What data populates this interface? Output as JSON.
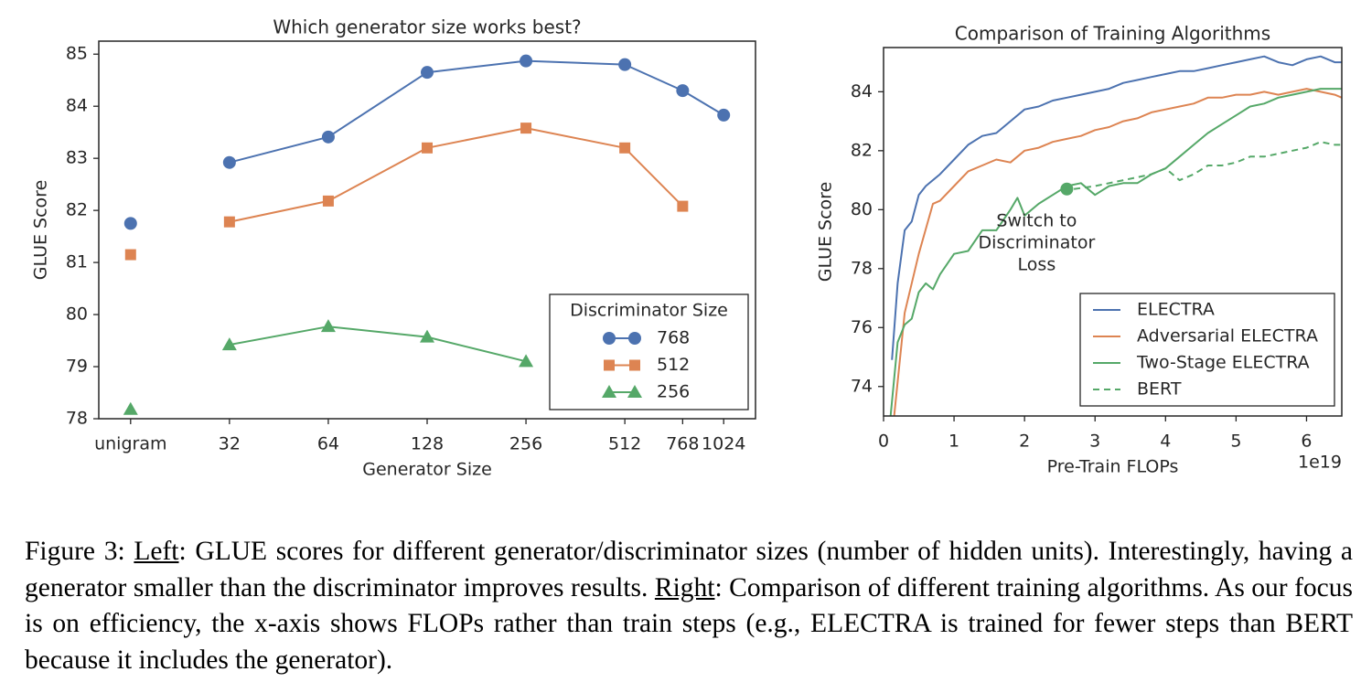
{
  "chart_data": [
    {
      "type": "line",
      "title": "Which generator size works best?",
      "xlabel": "Generator Size",
      "ylabel": "GLUE Score",
      "xscale": "log",
      "xlim": [
        12.8,
        1280
      ],
      "ylim": [
        78,
        85.25
      ],
      "x": [
        16,
        32,
        64,
        128,
        256,
        512,
        768,
        1024
      ],
      "xticks": [
        {
          "value": 16,
          "label": "unigram"
        },
        32,
        64,
        128,
        256,
        512,
        768,
        1024
      ],
      "yticks": [
        78,
        79,
        80,
        81,
        82,
        83,
        84,
        85
      ],
      "unjoined_x": [
        16
      ],
      "legend_title": "Discriminator Size",
      "legend": "lower right",
      "series": [
        {
          "name": "768",
          "color": "#4c72b0",
          "marker": "circle",
          "values": [
            81.75,
            82.92,
            83.41,
            84.65,
            84.87,
            84.8,
            84.3,
            83.83
          ]
        },
        {
          "name": "512",
          "color": "#dd8452",
          "marker": "square",
          "values": [
            81.15,
            81.78,
            82.18,
            83.2,
            83.58,
            83.2,
            82.08,
            null
          ]
        },
        {
          "name": "256",
          "color": "#55a868",
          "marker": "triangle",
          "values": [
            78.18,
            79.42,
            79.77,
            79.57,
            79.1,
            null,
            null,
            null
          ]
        }
      ]
    },
    {
      "type": "line",
      "title": "Comparison of Training Algorithms",
      "xlabel": "Pre-Train FLOPs",
      "ylabel": "GLUE Score",
      "x_offset_label": "1e19",
      "xlim": [
        0,
        6.5
      ],
      "ylim": [
        73,
        85.5
      ],
      "xticks": [
        0,
        1,
        2,
        3,
        4,
        5,
        6
      ],
      "yticks": [
        74,
        76,
        78,
        80,
        82,
        84
      ],
      "legend": "lower right",
      "annotation": [
        "Switch to",
        "Discriminator",
        "Loss"
      ],
      "annotation_point": [
        2.6,
        80.7
      ],
      "series": [
        {
          "name": "ELECTRA",
          "color": "#4c72b0",
          "x": [
            0.12,
            0.2,
            0.3,
            0.4,
            0.5,
            0.6,
            0.8,
            1.0,
            1.2,
            1.4,
            1.6,
            1.8,
            2.0,
            2.2,
            2.4,
            2.6,
            2.8,
            3.0,
            3.2,
            3.4,
            3.6,
            3.8,
            4.0,
            4.2,
            4.4,
            4.6,
            4.8,
            5.0,
            5.2,
            5.4,
            5.6,
            5.8,
            6.0,
            6.2,
            6.4,
            6.5
          ],
          "values": [
            74.9,
            77.5,
            79.3,
            79.6,
            80.5,
            80.8,
            81.2,
            81.7,
            82.2,
            82.5,
            82.6,
            83.0,
            83.4,
            83.5,
            83.7,
            83.8,
            83.9,
            84.0,
            84.1,
            84.3,
            84.4,
            84.5,
            84.6,
            84.7,
            84.7,
            84.8,
            84.9,
            85.0,
            85.1,
            85.2,
            85.0,
            84.9,
            85.1,
            85.2,
            85.0,
            85.0
          ]
        },
        {
          "name": "Adversarial ELECTRA",
          "color": "#dd8452",
          "x": [
            0.15,
            0.3,
            0.5,
            0.7,
            0.8,
            1.0,
            1.2,
            1.4,
            1.6,
            1.8,
            2.0,
            2.2,
            2.4,
            2.6,
            2.8,
            3.0,
            3.2,
            3.4,
            3.6,
            3.8,
            4.0,
            4.2,
            4.4,
            4.6,
            4.8,
            5.0,
            5.2,
            5.4,
            5.6,
            5.8,
            6.0,
            6.2,
            6.4,
            6.5
          ],
          "values": [
            73.0,
            76.5,
            78.5,
            80.2,
            80.3,
            80.8,
            81.3,
            81.5,
            81.7,
            81.6,
            82.0,
            82.1,
            82.3,
            82.4,
            82.5,
            82.7,
            82.8,
            83.0,
            83.1,
            83.3,
            83.4,
            83.5,
            83.6,
            83.8,
            83.8,
            83.9,
            83.9,
            84.0,
            83.9,
            84.0,
            84.1,
            84.0,
            83.9,
            83.8
          ]
        },
        {
          "name": "Two-Stage ELECTRA",
          "color": "#55a868",
          "x": [
            0.1,
            0.2,
            0.3,
            0.4,
            0.5,
            0.6,
            0.7,
            0.8,
            1.0,
            1.2,
            1.4,
            1.6,
            1.8,
            1.9,
            2.0,
            2.2,
            2.4,
            2.6,
            2.8,
            3.0,
            3.2,
            3.4,
            3.6,
            3.8,
            4.0,
            4.2,
            4.4,
            4.6,
            4.8,
            5.0,
            5.2,
            5.4,
            5.6,
            5.8,
            6.0,
            6.2,
            6.4,
            6.5
          ],
          "values": [
            73.0,
            75.5,
            76.1,
            76.3,
            77.2,
            77.5,
            77.3,
            77.8,
            78.5,
            78.6,
            79.3,
            79.3,
            80.0,
            80.4,
            79.8,
            80.2,
            80.5,
            80.8,
            80.9,
            80.5,
            80.8,
            80.9,
            80.9,
            81.2,
            81.4,
            81.8,
            82.2,
            82.6,
            82.9,
            83.2,
            83.5,
            83.6,
            83.8,
            83.9,
            84.0,
            84.1,
            84.1,
            84.1
          ]
        },
        {
          "name": "BERT",
          "color": "#55a868",
          "dash": true,
          "x": [
            2.7,
            3.0,
            3.2,
            3.4,
            3.6,
            3.8,
            4.0,
            4.2,
            4.4,
            4.6,
            4.8,
            5.0,
            5.2,
            5.4,
            5.6,
            5.8,
            6.0,
            6.2,
            6.4,
            6.5
          ],
          "values": [
            80.7,
            80.8,
            80.9,
            81.0,
            81.1,
            81.2,
            81.4,
            81.0,
            81.2,
            81.5,
            81.5,
            81.6,
            81.8,
            81.8,
            81.9,
            82.0,
            82.1,
            82.3,
            82.2,
            82.2
          ]
        }
      ]
    }
  ],
  "caption": {
    "label": "Figure 3:",
    "left_label": "Left",
    "left_text": ": GLUE scores for different generator/discriminator sizes (number of hidden units). Interestingly, having a generator smaller than the discriminator improves results.",
    "right_label": "Right",
    "right_text": ": Comparison of different training algorithms. As our focus is on efficiency, the x-axis shows FLOPs rather than train steps (e.g., ELECTRA is trained for fewer steps than BERT because it includes the generator)."
  }
}
